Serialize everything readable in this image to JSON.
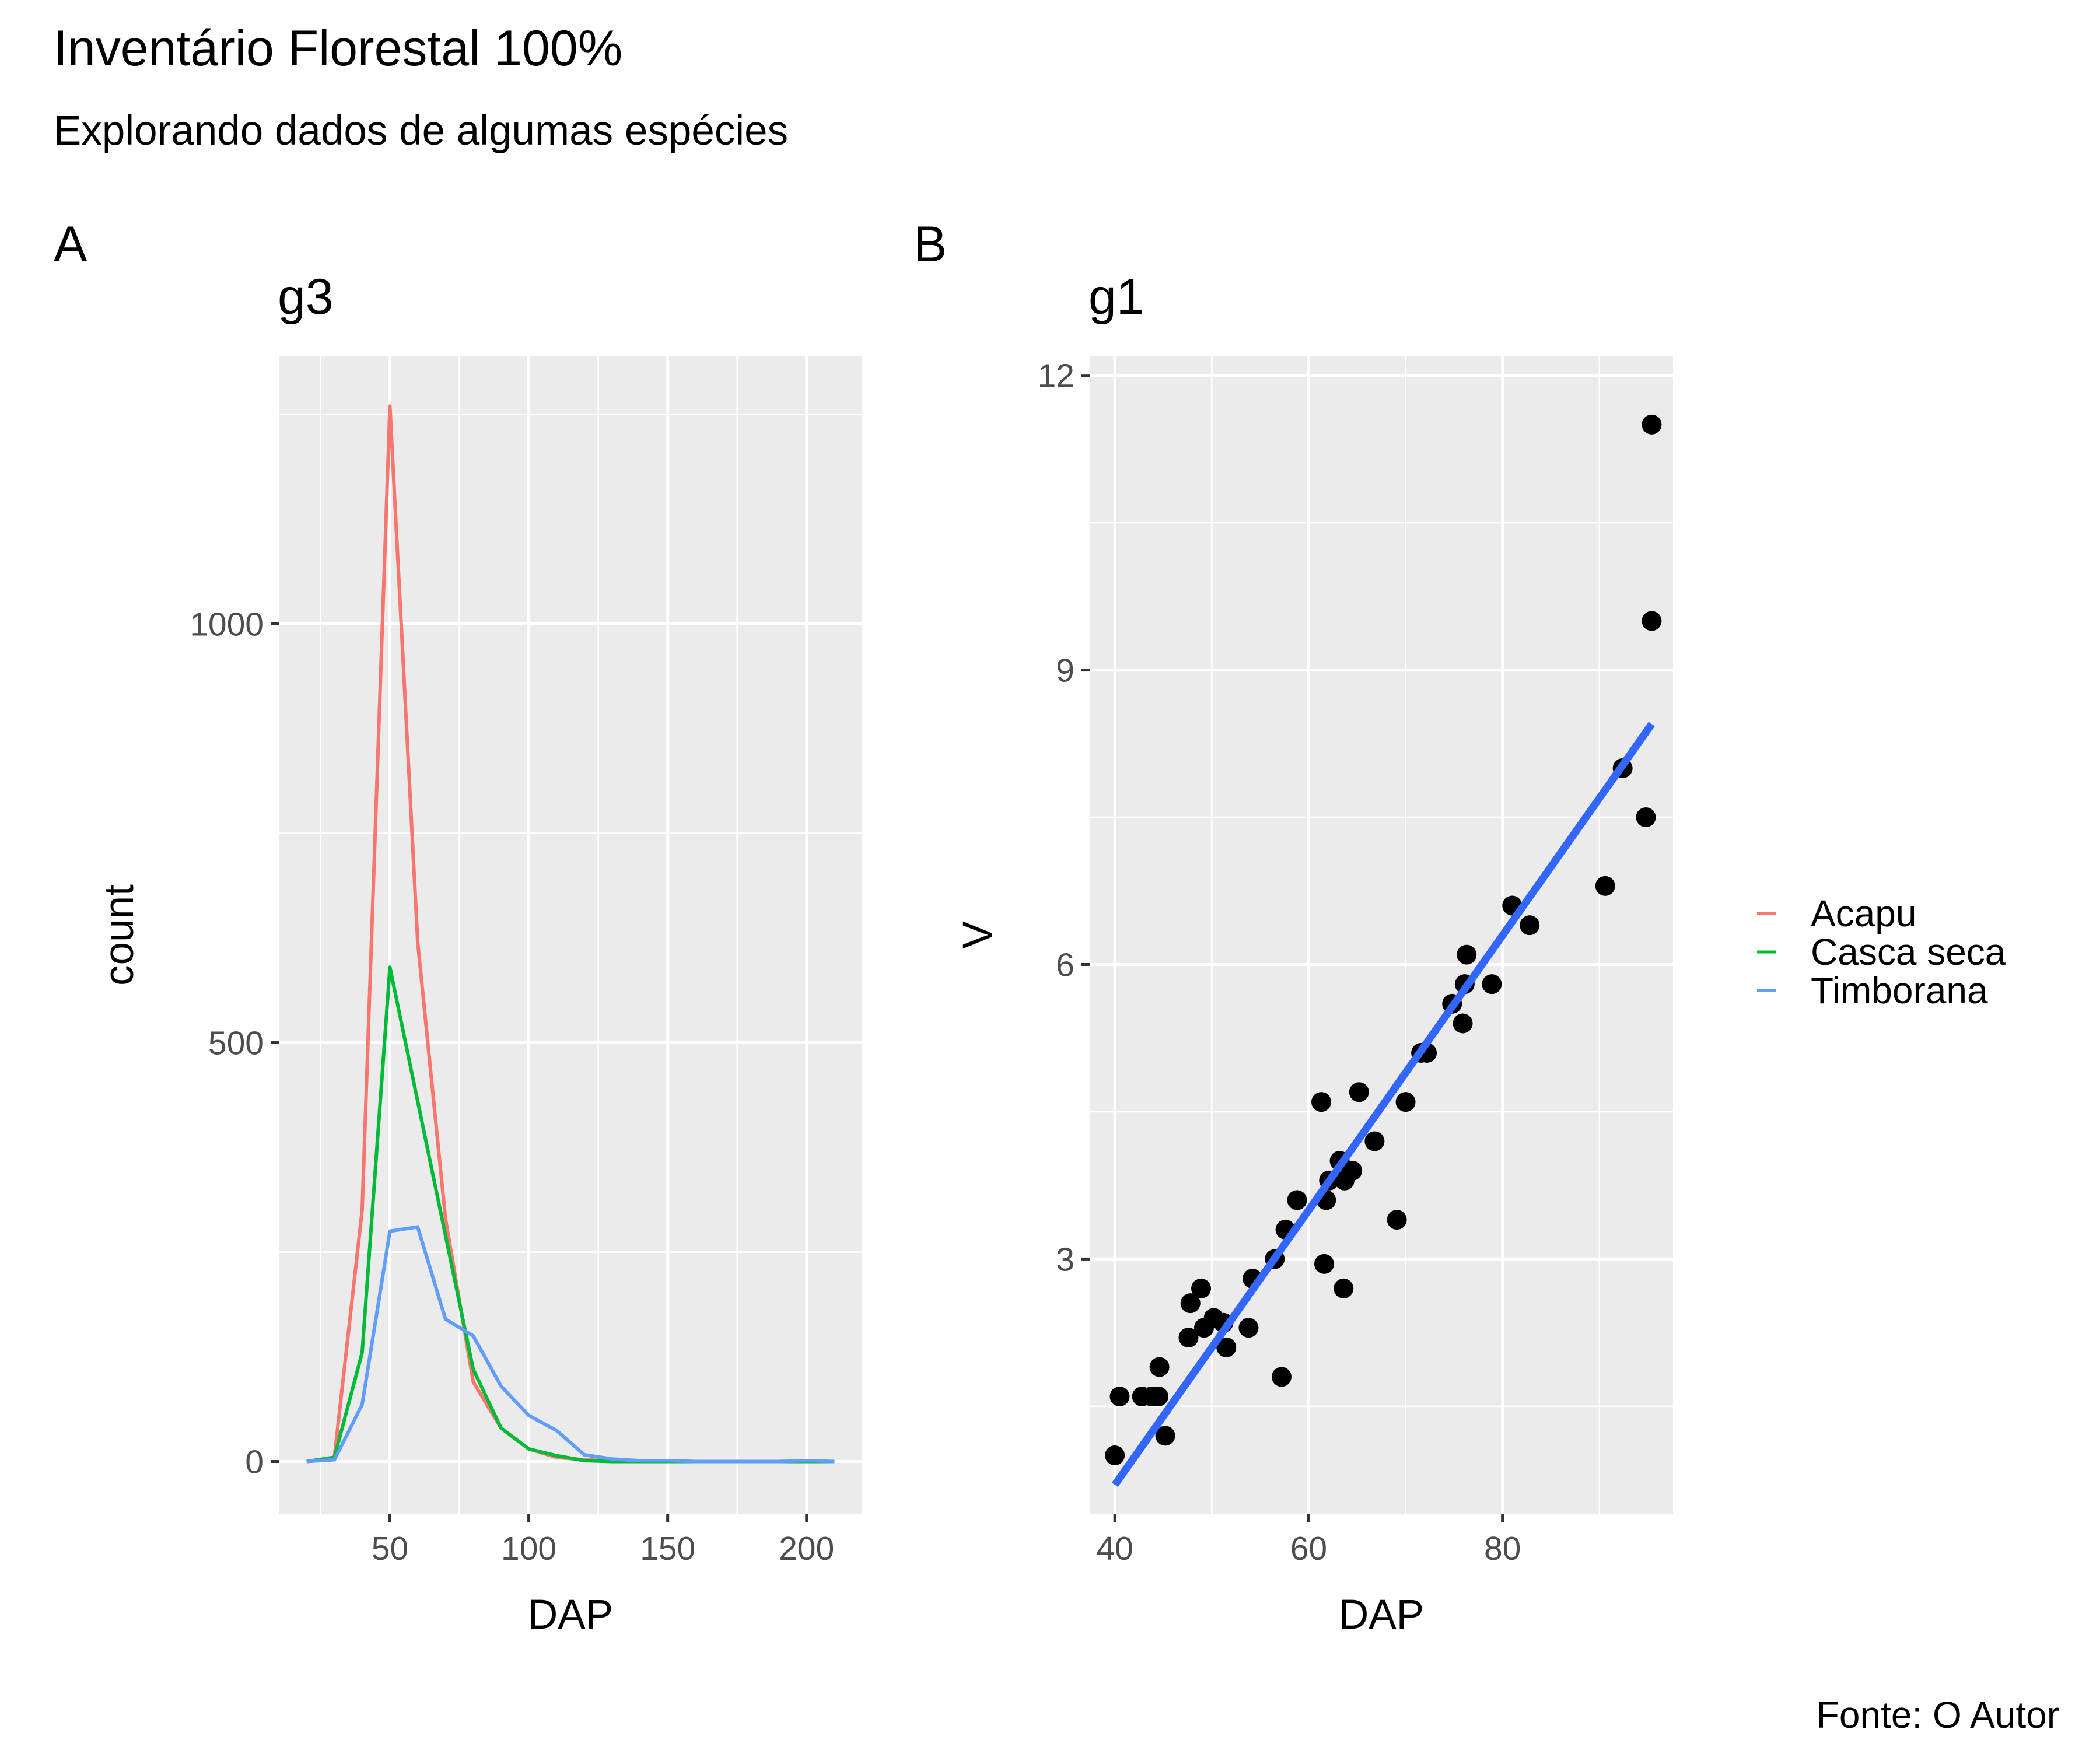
{
  "title": "Inventário Florestal 100%",
  "subtitle": "Explorando dados de algumas espécies",
  "caption": "Fonte: O Autor",
  "panel_tags": [
    "A",
    "B"
  ],
  "colors": {
    "panel_bg": "#ebebeb",
    "grid": "#ffffff",
    "Acapu": "#f8766d",
    "Casca seca": "#00ba38",
    "Timborana": "#619cff",
    "points": "#000000",
    "fit_line": "#3366ff"
  },
  "legend": {
    "position": "right",
    "entries": [
      "Acapu",
      "Casca seca",
      "Timborana"
    ]
  },
  "chart_data": [
    {
      "type": "line",
      "title": "g3",
      "xlabel": "DAP",
      "ylabel": "count",
      "xlim": [
        10,
        220
      ],
      "ylim": [
        -63,
        1320
      ],
      "xticks": [
        50,
        100,
        150,
        200
      ],
      "yticks": [
        0,
        500,
        1000
      ],
      "grid": true,
      "series": [
        {
          "name": "Acapu",
          "x": [
            20,
            30,
            40,
            50,
            60,
            70,
            80,
            90,
            100,
            110,
            120,
            130,
            140,
            150,
            160,
            170,
            180,
            190,
            200,
            210
          ],
          "y": [
            0,
            5,
            300,
            1260,
            620,
            290,
            95,
            40,
            15,
            5,
            2,
            1,
            0,
            0,
            0,
            0,
            0,
            0,
            0,
            0
          ]
        },
        {
          "name": "Casca seca",
          "x": [
            20,
            30,
            40,
            50,
            60,
            70,
            80,
            90,
            100,
            110,
            120,
            130,
            140,
            150,
            160,
            170,
            180,
            190,
            200,
            210
          ],
          "y": [
            0,
            5,
            130,
            590,
            430,
            270,
            110,
            40,
            15,
            7,
            1,
            0,
            0,
            0,
            0,
            0,
            0,
            0,
            0,
            0
          ]
        },
        {
          "name": "Timborana",
          "x": [
            20,
            30,
            40,
            50,
            60,
            70,
            80,
            90,
            100,
            110,
            120,
            130,
            140,
            150,
            160,
            170,
            180,
            190,
            200,
            210
          ],
          "y": [
            0,
            2,
            68,
            275,
            280,
            170,
            150,
            90,
            55,
            37,
            8,
            3,
            1,
            1,
            0,
            0,
            0,
            0,
            1,
            0
          ]
        }
      ]
    },
    {
      "type": "scatter",
      "title": "g1",
      "xlabel": "DAP",
      "ylabel": "V",
      "xlim": [
        37.4,
        97.6
      ],
      "ylim": [
        0.4,
        12.2
      ],
      "xticks": [
        40,
        60,
        80
      ],
      "yticks": [
        3,
        6,
        9,
        12
      ],
      "grid": true,
      "points": [
        [
          40,
          1.0
        ],
        [
          40.5,
          1.6
        ],
        [
          42.8,
          1.6
        ],
        [
          43.8,
          1.6
        ],
        [
          44.6,
          1.9
        ],
        [
          44.5,
          1.6
        ],
        [
          45.2,
          1.2
        ],
        [
          47.6,
          2.2
        ],
        [
          47.8,
          2.55
        ],
        [
          48.9,
          2.7
        ],
        [
          49.2,
          2.3
        ],
        [
          50.2,
          2.4
        ],
        [
          51.2,
          2.35
        ],
        [
          51.5,
          2.1
        ],
        [
          53.8,
          2.3
        ],
        [
          54.2,
          2.8
        ],
        [
          56.5,
          3.0
        ],
        [
          57.2,
          1.8
        ],
        [
          57.6,
          3.3
        ],
        [
          58.8,
          3.6
        ],
        [
          61.3,
          4.6
        ],
        [
          61.6,
          2.95
        ],
        [
          61.8,
          3.6
        ],
        [
          62.1,
          3.8
        ],
        [
          63.2,
          4.0
        ],
        [
          63.7,
          3.8
        ],
        [
          63.6,
          2.7
        ],
        [
          64.5,
          3.9
        ],
        [
          65.2,
          4.7
        ],
        [
          66.8,
          4.2
        ],
        [
          69.1,
          3.4
        ],
        [
          70,
          4.6
        ],
        [
          71.6,
          5.1
        ],
        [
          72.2,
          5.1
        ],
        [
          74.8,
          5.6
        ],
        [
          75.9,
          5.4
        ],
        [
          76.1,
          5.8
        ],
        [
          76.3,
          6.1
        ],
        [
          78.9,
          5.8
        ],
        [
          81,
          6.6
        ],
        [
          82.8,
          6.4
        ],
        [
          90.6,
          6.8
        ],
        [
          92.4,
          8.0
        ],
        [
          94.8,
          7.5
        ],
        [
          95.4,
          9.5
        ],
        [
          95.4,
          11.5
        ]
      ],
      "fit_line": {
        "x": [
          40,
          95.4
        ],
        "y": [
          0.7,
          8.45
        ]
      }
    }
  ]
}
